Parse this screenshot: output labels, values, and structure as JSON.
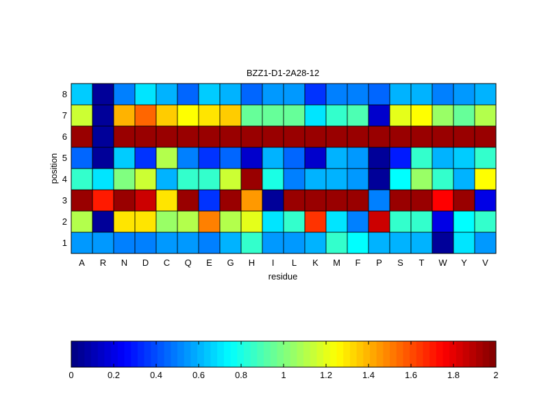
{
  "chart_data": {
    "type": "heatmap",
    "title": "BZZ1-D1-2A28-12",
    "xlabel": "residue",
    "ylabel": "position",
    "x_categories": [
      "A",
      "R",
      "N",
      "D",
      "C",
      "Q",
      "E",
      "G",
      "H",
      "I",
      "L",
      "K",
      "M",
      "F",
      "P",
      "S",
      "T",
      "W",
      "Y",
      "V"
    ],
    "y_categories": [
      "1",
      "2",
      "3",
      "4",
      "5",
      "6",
      "7",
      "8"
    ],
    "values": [
      [
        0.55,
        0.55,
        0.5,
        0.5,
        0.55,
        0.55,
        0.5,
        0.6,
        0.85,
        0.55,
        0.55,
        0.6,
        0.85,
        0.75,
        0.6,
        0.6,
        0.6,
        0.05,
        0.7,
        0.55
      ],
      [
        1.1,
        0.05,
        1.3,
        1.3,
        1.05,
        1.1,
        1.5,
        1.1,
        1.2,
        0.7,
        0.85,
        1.65,
        0.7,
        0.5,
        1.85,
        0.85,
        0.85,
        0.2,
        0.75,
        0.85
      ],
      [
        1.95,
        1.7,
        1.95,
        1.85,
        1.3,
        1.95,
        0.35,
        1.95,
        1.45,
        0.05,
        1.95,
        1.95,
        1.95,
        1.95,
        0.5,
        1.95,
        1.95,
        1.75,
        1.95,
        0.2
      ],
      [
        0.85,
        0.7,
        1.0,
        1.15,
        0.6,
        0.85,
        0.85,
        1.15,
        1.95,
        0.8,
        0.5,
        0.6,
        0.6,
        0.55,
        0.05,
        0.75,
        1.05,
        0.85,
        0.6,
        1.25
      ],
      [
        0.45,
        0.05,
        0.65,
        0.35,
        1.1,
        0.5,
        0.35,
        0.45,
        0.15,
        0.6,
        0.45,
        0.15,
        0.6,
        0.55,
        0.05,
        0.3,
        0.85,
        0.6,
        0.65,
        0.85
      ],
      [
        1.95,
        0.05,
        1.95,
        1.95,
        1.95,
        1.95,
        1.95,
        1.95,
        1.95,
        1.95,
        1.95,
        1.95,
        1.95,
        1.95,
        1.95,
        1.95,
        1.95,
        1.95,
        1.95,
        1.95
      ],
      [
        1.15,
        0.05,
        1.4,
        1.55,
        1.35,
        1.25,
        1.3,
        1.35,
        0.95,
        0.95,
        0.95,
        0.7,
        0.85,
        0.9,
        0.15,
        1.2,
        1.25,
        1.05,
        0.95,
        1.1
      ],
      [
        0.65,
        0.05,
        0.5,
        0.7,
        0.6,
        0.45,
        0.65,
        0.6,
        0.45,
        0.55,
        0.55,
        0.35,
        0.5,
        0.5,
        0.45,
        0.6,
        0.6,
        0.5,
        0.55,
        0.6
      ]
    ],
    "value_range": [
      0,
      2
    ],
    "colormap": "jet",
    "colorbar": {
      "ticks": [
        0,
        0.2,
        0.4,
        0.6,
        0.8,
        1,
        1.2,
        1.4,
        1.6,
        1.8,
        2
      ],
      "tick_labels": [
        "0",
        "0.2",
        "0.4",
        "0.6",
        "0.8",
        "1",
        "1.2",
        "1.4",
        "1.6",
        "1.8",
        "2"
      ],
      "placement": "bottom",
      "bands": 64
    },
    "grid": false
  }
}
